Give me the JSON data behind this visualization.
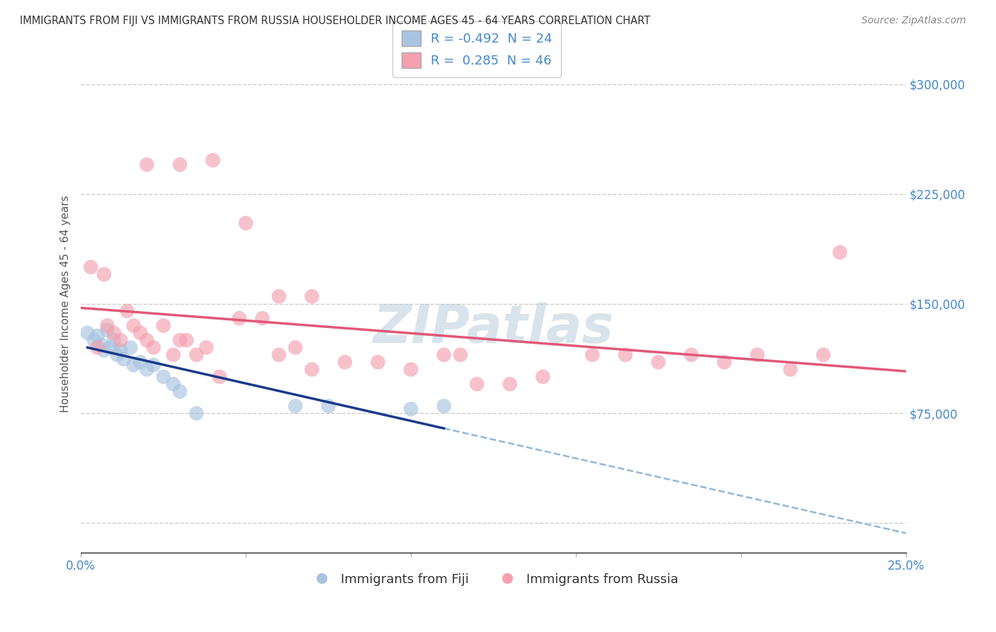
{
  "title": "IMMIGRANTS FROM FIJI VS IMMIGRANTS FROM RUSSIA HOUSEHOLDER INCOME AGES 45 - 64 YEARS CORRELATION CHART",
  "source": "Source: ZipAtlas.com",
  "ylabel": "Householder Income Ages 45 - 64 years",
  "xlim": [
    0.0,
    25.0
  ],
  "ylim": [
    -20000,
    320000
  ],
  "yticks": [
    0,
    75000,
    150000,
    225000,
    300000
  ],
  "ytick_labels": [
    "",
    "$75,000",
    "$150,000",
    "$225,000",
    "$300,000"
  ],
  "fiji_R": -0.492,
  "fiji_N": 24,
  "russia_R": 0.285,
  "russia_N": 46,
  "fiji_color": "#a8c4e0",
  "russia_color": "#f4a0b0",
  "fiji_line_color": "#1a3a8a",
  "russia_line_color": "#e05878",
  "dashed_line_color": "#90b8d8",
  "fiji_x": [
    0.2,
    0.4,
    0.5,
    0.6,
    0.7,
    0.8,
    0.9,
    1.0,
    1.1,
    1.2,
    1.3,
    1.5,
    1.6,
    1.8,
    2.0,
    2.2,
    2.5,
    2.8,
    3.0,
    3.5,
    6.5,
    7.5,
    10.0,
    11.0
  ],
  "fiji_y": [
    130000,
    125000,
    128000,
    122000,
    118000,
    132000,
    120000,
    125000,
    115000,
    118000,
    112000,
    120000,
    108000,
    110000,
    105000,
    108000,
    100000,
    95000,
    90000,
    75000,
    80000,
    80000,
    78000,
    80000
  ],
  "russia_x": [
    0.3,
    0.5,
    0.7,
    0.8,
    1.0,
    1.2,
    1.4,
    1.6,
    1.8,
    2.0,
    2.2,
    2.5,
    2.8,
    3.0,
    3.2,
    3.5,
    3.8,
    4.2,
    4.8,
    5.5,
    6.0,
    6.5,
    7.0,
    8.0,
    9.0,
    10.0,
    11.0,
    11.5,
    12.0,
    13.0,
    14.0,
    15.5,
    16.5,
    17.5,
    18.5,
    19.5,
    20.5,
    21.5,
    22.5,
    23.0,
    2.0,
    3.0,
    4.0,
    5.0,
    6.0,
    7.0
  ],
  "russia_y": [
    175000,
    120000,
    170000,
    135000,
    130000,
    125000,
    145000,
    135000,
    130000,
    125000,
    120000,
    135000,
    115000,
    125000,
    125000,
    115000,
    120000,
    100000,
    140000,
    140000,
    115000,
    120000,
    105000,
    110000,
    110000,
    105000,
    115000,
    115000,
    95000,
    95000,
    100000,
    115000,
    115000,
    110000,
    115000,
    110000,
    115000,
    105000,
    115000,
    185000,
    245000,
    245000,
    248000,
    205000,
    155000,
    155000
  ],
  "watermark": "ZIPatlas",
  "background_color": "#ffffff",
  "grid_color": "#cccccc"
}
